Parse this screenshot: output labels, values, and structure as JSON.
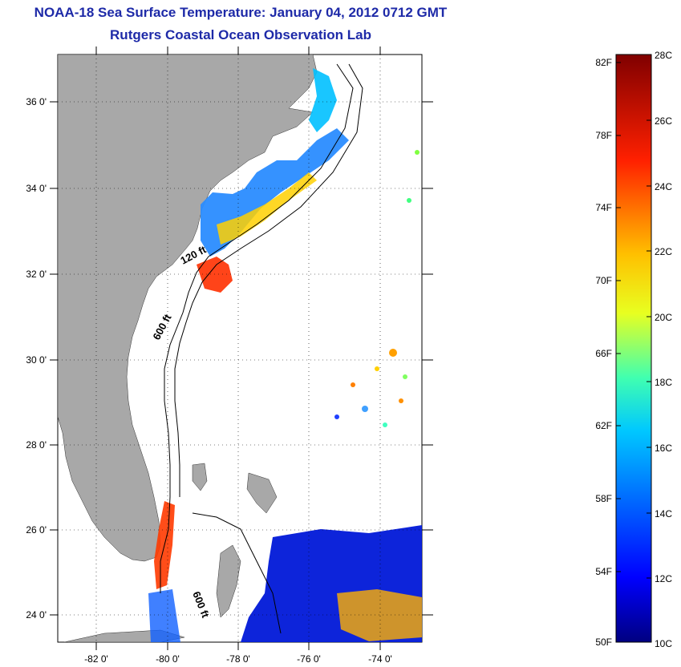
{
  "title": "NOAA-18 Sea Surface Temperature:  January 04, 2012 0712 GMT",
  "subtitle": "Rutgers Coastal Ocean Observation Lab",
  "map": {
    "lat_ticks": [
      "36 0'",
      "34 0'",
      "32 0'",
      "30 0'",
      "28 0'",
      "26 0'",
      "24 0'"
    ],
    "lon_ticks": [
      "-82 0'",
      "-80 0'",
      "-78 0'",
      "-76 0'",
      "-74 0'"
    ],
    "contour_labels": {
      "c120": "120 ft",
      "c600": "600 ft",
      "c600b": "600 ft"
    },
    "colors": {
      "land": "#a8a8a8",
      "water": "#ffffff",
      "contour": "#000000"
    }
  },
  "colorbar": {
    "f_labels": [
      "82F",
      "78F",
      "74F",
      "70F",
      "66F",
      "62F",
      "58F",
      "54F",
      "50F"
    ],
    "c_labels": [
      "28C",
      "26C",
      "24C",
      "22C",
      "20C",
      "18C",
      "16C",
      "14C",
      "12C",
      "10C"
    ],
    "range_c": [
      10,
      28
    ],
    "range_f": [
      50,
      82.4
    ]
  }
}
